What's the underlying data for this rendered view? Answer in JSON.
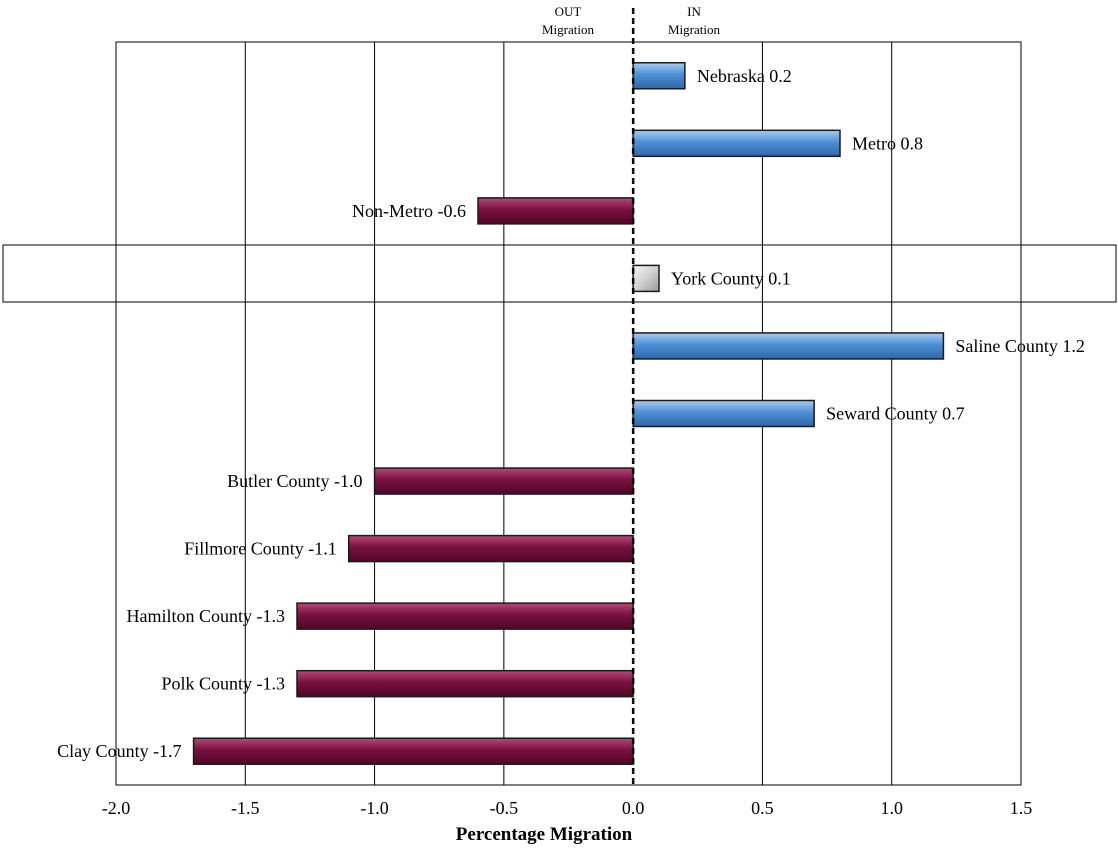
{
  "chart_data": {
    "type": "bar",
    "orientation": "horizontal",
    "xlabel": "Percentage Migration",
    "xlim": [
      -2.0,
      1.5
    ],
    "xticks": [
      "-2.0",
      "-1.5",
      "-1.0",
      "-0.5",
      "0.0",
      "0.5",
      "1.0",
      "1.5"
    ],
    "direction_labels": {
      "out": [
        "OUT",
        "Migration"
      ],
      "in": [
        "IN",
        "Migration"
      ]
    },
    "grid": "vertical",
    "highlighted_category": "York County",
    "colors": {
      "positive": "#4f8fd6",
      "negative": "#7a1040",
      "highlight": "#d8d8d8"
    },
    "bars": [
      {
        "category": "Nebraska",
        "value": 0.2,
        "label": "Nebraska 0.2"
      },
      {
        "category": "Metro",
        "value": 0.8,
        "label": "Metro 0.8"
      },
      {
        "category": "Non-Metro",
        "value": -0.6,
        "label": "Non-Metro -0.6"
      },
      {
        "category": "York County",
        "value": 0.1,
        "label": "York County 0.1"
      },
      {
        "category": "Saline County",
        "value": 1.2,
        "label": "Saline County 1.2"
      },
      {
        "category": "Seward County",
        "value": 0.7,
        "label": "Seward County 0.7"
      },
      {
        "category": "Butler County",
        "value": -1.0,
        "label": "Butler County -1.0"
      },
      {
        "category": "Fillmore County",
        "value": -1.1,
        "label": "Fillmore County -1.1"
      },
      {
        "category": "Hamilton County",
        "value": -1.3,
        "label": "Hamilton County -1.3"
      },
      {
        "category": "Polk County",
        "value": -1.3,
        "label": "Polk County -1.3"
      },
      {
        "category": "Clay County",
        "value": -1.7,
        "label": "Clay County -1.7"
      }
    ]
  }
}
